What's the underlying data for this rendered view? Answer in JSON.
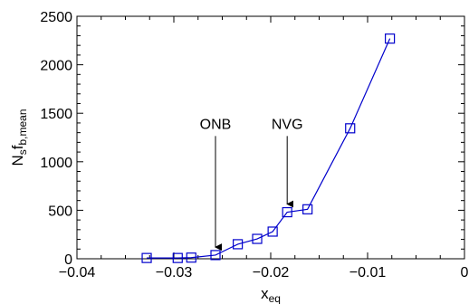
{
  "chart_data": {
    "type": "line",
    "ylabel_main": "N",
    "ylabel_sub1": "s",
    "ylabel_mid": "f",
    "ylabel_sub2": "b,mean",
    "xlabel_main": "x",
    "xlabel_sub": "eq",
    "xlim": [
      -0.04,
      0
    ],
    "ylim": [
      0,
      2500
    ],
    "xticks": [
      -0.04,
      -0.03,
      -0.02,
      -0.01,
      0
    ],
    "xtick_labels": [
      "−0.04",
      "−0.03",
      "−0.02",
      "−0.01",
      "0"
    ],
    "yticks": [
      0,
      500,
      1000,
      1500,
      2000,
      2500
    ],
    "ytick_labels": [
      "0",
      "500",
      "1000",
      "1500",
      "2000",
      "2500"
    ],
    "grid": false,
    "series": [
      {
        "color": "#0000cc",
        "marker": "square-open",
        "x": [
          -0.0328,
          -0.0296,
          -0.0282,
          -0.0257,
          -0.0234,
          -0.0214,
          -0.0198,
          -0.0183,
          -0.0162,
          -0.0118,
          -0.0077
        ],
        "y": [
          8,
          8,
          12,
          38,
          150,
          205,
          280,
          480,
          510,
          1345,
          2270
        ]
      }
    ],
    "annotations": [
      {
        "text": "ONB",
        "x": -0.0257,
        "y_text": 1340,
        "y_tip": 45
      },
      {
        "text": "NVG",
        "x": -0.0183,
        "y_text": 1340,
        "y_tip": 490
      }
    ]
  }
}
